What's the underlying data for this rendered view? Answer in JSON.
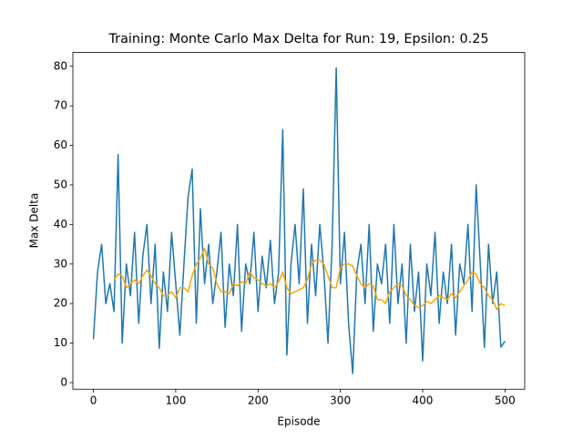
{
  "chart_data": {
    "type": "line",
    "title": "Training: Monte Carlo Max Delta for Run: 19, Epsilon: 0.25",
    "xlabel": "Episode",
    "ylabel": "Max Delta",
    "xlim": [
      -24.95,
      523.95
    ],
    "ylim": [
      -1.67,
      83.5
    ],
    "xticks": [
      0,
      100,
      200,
      300,
      400,
      500
    ],
    "yticks": [
      0,
      10,
      20,
      30,
      40,
      50,
      60,
      70,
      80
    ],
    "grid": false,
    "x": [
      0,
      5,
      10,
      15,
      20,
      25,
      30,
      35,
      40,
      45,
      50,
      55,
      60,
      65,
      70,
      75,
      80,
      85,
      90,
      95,
      100,
      105,
      110,
      115,
      120,
      125,
      130,
      135,
      140,
      145,
      150,
      155,
      160,
      165,
      170,
      175,
      180,
      185,
      190,
      195,
      200,
      205,
      210,
      215,
      220,
      225,
      230,
      235,
      240,
      245,
      250,
      255,
      260,
      265,
      270,
      275,
      280,
      285,
      290,
      295,
      300,
      305,
      310,
      315,
      320,
      325,
      330,
      335,
      340,
      345,
      350,
      355,
      360,
      365,
      370,
      375,
      380,
      385,
      390,
      395,
      400,
      405,
      410,
      415,
      420,
      425,
      430,
      435,
      440,
      445,
      450,
      455,
      460,
      465,
      470,
      475,
      480,
      485,
      490,
      495,
      500
    ],
    "series": [
      {
        "color": "#1f77b4",
        "values": [
          11,
          28,
          35,
          20,
          25,
          18,
          57.7,
          10,
          30,
          22,
          38,
          15,
          32,
          40,
          20,
          35,
          8.7,
          28,
          18,
          38,
          25,
          12,
          30,
          47,
          54,
          15,
          44,
          25,
          35,
          20,
          28,
          38,
          14,
          30,
          22,
          40,
          13,
          30,
          25,
          38,
          18,
          32,
          24,
          36,
          20,
          28,
          64,
          7,
          30,
          40,
          25,
          49,
          15,
          35,
          22,
          40,
          28,
          10,
          35,
          79.6,
          25,
          38,
          15,
          2.3,
          28,
          35,
          20,
          40,
          13,
          30,
          25,
          35,
          15,
          40,
          20,
          30,
          10,
          35,
          18,
          28,
          5.5,
          30,
          22,
          38,
          15,
          28,
          20,
          35,
          12,
          30,
          25,
          40,
          18,
          50,
          30,
          8.9,
          35,
          20,
          28,
          9,
          10.5
        ]
      },
      {
        "color": "#ffa500",
        "values": [
          null,
          null,
          null,
          null,
          null,
          26,
          27.5,
          27,
          24,
          25,
          26,
          25,
          27,
          28.5,
          27,
          25,
          24,
          22,
          22,
          23,
          21.5,
          24,
          24,
          23,
          27,
          30,
          31.5,
          34,
          30,
          29,
          25,
          23,
          23,
          22.5,
          25,
          24.5,
          25.5,
          25,
          28,
          26.5,
          26,
          25,
          24.5,
          25,
          24,
          25.5,
          28,
          24,
          22.5,
          23,
          23.5,
          24,
          26,
          30,
          31,
          31,
          30,
          27,
          24,
          24,
          29,
          30,
          30,
          29.5,
          27,
          25,
          24,
          25,
          24.5,
          21,
          21,
          20,
          23,
          24,
          25,
          24.5,
          22,
          21,
          19.5,
          19,
          19.5,
          20.5,
          20,
          21,
          22,
          21.5,
          21,
          22.5,
          21.5,
          23,
          24.5,
          26,
          28,
          27.5,
          25,
          24,
          22,
          21,
          18.5,
          20,
          19.5
        ]
      }
    ]
  }
}
